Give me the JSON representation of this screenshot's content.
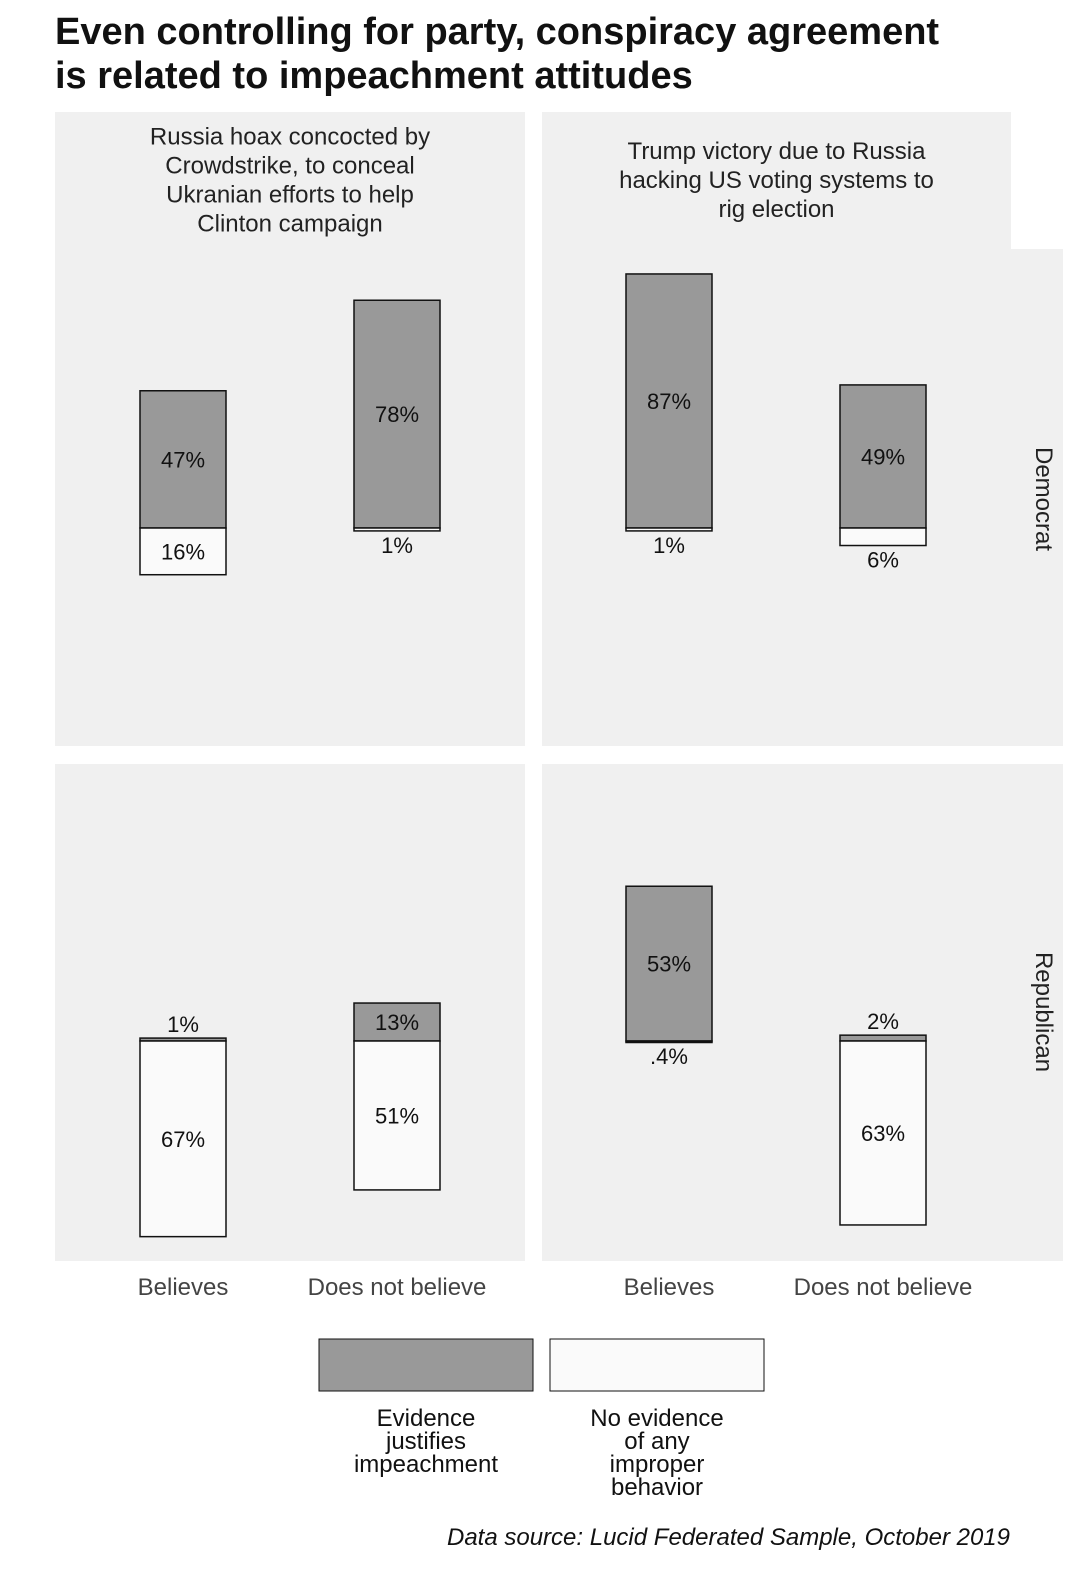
{
  "chart_data": {
    "type": "bar",
    "title_lines": [
      "Even controlling for party, conspiracy agreement",
      "is related to impeachment attitudes"
    ],
    "caption": "Data source: Lucid Federated Sample, October 2019",
    "categories": [
      "Believes",
      "Does not believe"
    ],
    "rows": [
      "Democrat",
      "Republican"
    ],
    "legend": {
      "placement": "bottom",
      "items": [
        {
          "key": "justifies",
          "label_lines": [
            "Evidence",
            "justifies",
            "impeachment"
          ],
          "color": "#999999"
        },
        {
          "key": "none",
          "label_lines": [
            "No evidence",
            "of any",
            "improper",
            "behavior"
          ],
          "color": "#fafafa"
        }
      ]
    },
    "panels": [
      {
        "col": 0,
        "row": 0,
        "party": "Democrat",
        "strip_lines": [
          "Russia hoax concocted by",
          "Crowdstrike, to conceal",
          "Ukranian efforts to help",
          "Clinton campaign"
        ],
        "bars": [
          {
            "category": "Believes",
            "justifies": 47,
            "justifies_label": "47%",
            "none": 16,
            "none_label": "16%"
          },
          {
            "category": "Does not believe",
            "justifies": 78,
            "justifies_label": "78%",
            "none": 1,
            "none_label": "1%"
          }
        ]
      },
      {
        "col": 1,
        "row": 0,
        "party": "Democrat",
        "strip_lines": [
          "Trump victory due to Russia",
          "hacking US voting systems to",
          "rig election"
        ],
        "bars": [
          {
            "category": "Believes",
            "justifies": 87,
            "justifies_label": "87%",
            "none": 1,
            "none_label": "1%"
          },
          {
            "category": "Does not believe",
            "justifies": 49,
            "justifies_label": "49%",
            "none": 6,
            "none_label": "6%"
          }
        ]
      },
      {
        "col": 0,
        "row": 1,
        "party": "Republican",
        "strip_lines": [],
        "bars": [
          {
            "category": "Believes",
            "justifies": 1,
            "justifies_label": "1%",
            "none": 67,
            "none_label": "67%"
          },
          {
            "category": "Does not believe",
            "justifies": 13,
            "justifies_label": "13%",
            "none": 51,
            "none_label": "51%"
          }
        ]
      },
      {
        "col": 1,
        "row": 1,
        "party": "Republican",
        "strip_lines": [],
        "bars": [
          {
            "category": "Believes",
            "justifies": 53,
            "justifies_label": "53%",
            "none": 0.4,
            "none_label": ".4%"
          },
          {
            "category": "Does not believe",
            "justifies": 2,
            "justifies_label": "2%",
            "none": 63,
            "none_label": "63%"
          }
        ]
      }
    ],
    "grid": false
  }
}
